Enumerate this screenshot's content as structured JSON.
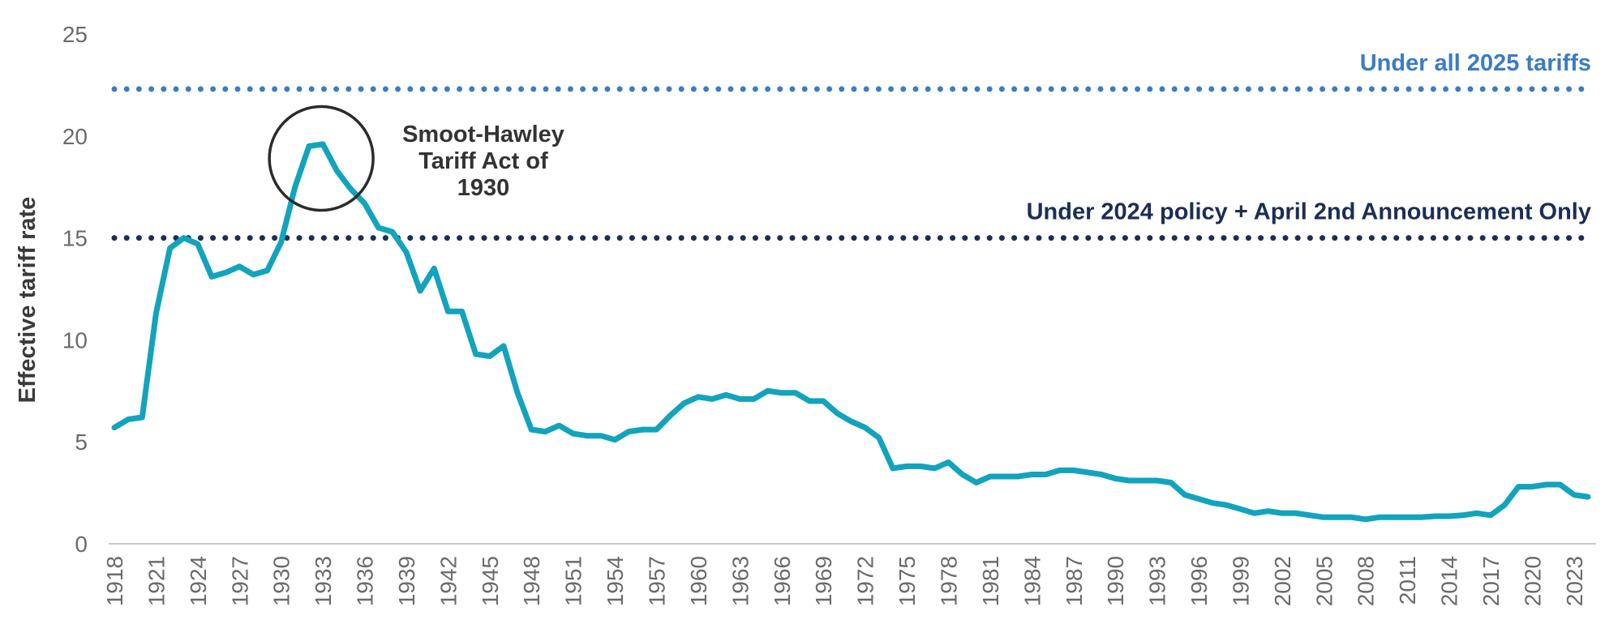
{
  "chart_data": {
    "type": "line",
    "title": "",
    "xlabel": "",
    "ylabel": "Effective tariff rate",
    "ylim": [
      0,
      25
    ],
    "yticks": [
      0,
      5,
      10,
      15,
      20,
      25
    ],
    "xlim": [
      1918,
      2024
    ],
    "xticks": [
      1918,
      1921,
      1924,
      1927,
      1930,
      1933,
      1936,
      1939,
      1942,
      1945,
      1948,
      1951,
      1954,
      1957,
      1960,
      1963,
      1966,
      1969,
      1972,
      1975,
      1978,
      1981,
      1984,
      1987,
      1990,
      1993,
      1996,
      1999,
      2002,
      2005,
      2008,
      2011,
      2014,
      2017,
      2020,
      2023
    ],
    "grid": false,
    "series": [
      {
        "name": "Effective tariff rate",
        "color": "#12a3bd",
        "x": [
          1918,
          1919,
          1920,
          1921,
          1922,
          1923,
          1924,
          1925,
          1926,
          1927,
          1928,
          1929,
          1930,
          1931,
          1932,
          1933,
          1934,
          1935,
          1936,
          1937,
          1938,
          1939,
          1940,
          1941,
          1942,
          1943,
          1944,
          1945,
          1946,
          1947,
          1948,
          1949,
          1950,
          1951,
          1952,
          1953,
          1954,
          1955,
          1956,
          1957,
          1958,
          1959,
          1960,
          1961,
          1962,
          1963,
          1964,
          1965,
          1966,
          1967,
          1968,
          1969,
          1970,
          1971,
          1972,
          1973,
          1974,
          1975,
          1976,
          1977,
          1978,
          1979,
          1980,
          1981,
          1982,
          1983,
          1984,
          1985,
          1986,
          1987,
          1988,
          1989,
          1990,
          1991,
          1992,
          1993,
          1994,
          1995,
          1996,
          1997,
          1998,
          1999,
          2000,
          2001,
          2002,
          2003,
          2004,
          2005,
          2006,
          2007,
          2008,
          2009,
          2010,
          2011,
          2012,
          2013,
          2014,
          2015,
          2016,
          2017,
          2018,
          2019,
          2020,
          2021,
          2022,
          2023,
          2024
        ],
        "values": [
          5.7,
          6.1,
          6.2,
          11.3,
          14.5,
          15.0,
          14.7,
          13.1,
          13.3,
          13.6,
          13.2,
          13.4,
          14.8,
          17.5,
          19.5,
          19.6,
          18.3,
          17.4,
          16.7,
          15.5,
          15.3,
          14.3,
          12.4,
          13.5,
          11.4,
          11.4,
          9.3,
          9.2,
          9.7,
          7.4,
          5.6,
          5.5,
          5.8,
          5.4,
          5.3,
          5.3,
          5.1,
          5.5,
          5.6,
          5.6,
          6.3,
          6.9,
          7.2,
          7.1,
          7.3,
          7.1,
          7.1,
          7.5,
          7.4,
          7.4,
          7.0,
          7.0,
          6.4,
          6.0,
          5.7,
          5.2,
          3.7,
          3.8,
          3.8,
          3.7,
          4.0,
          3.4,
          3.0,
          3.3,
          3.3,
          3.3,
          3.4,
          3.4,
          3.6,
          3.6,
          3.5,
          3.4,
          3.2,
          3.1,
          3.1,
          3.1,
          3.0,
          2.4,
          2.2,
          2.0,
          1.9,
          1.7,
          1.5,
          1.6,
          1.5,
          1.5,
          1.4,
          1.3,
          1.3,
          1.3,
          1.2,
          1.3,
          1.3,
          1.3,
          1.3,
          1.35,
          1.35,
          1.4,
          1.5,
          1.4,
          1.9,
          2.8,
          2.8,
          2.9,
          2.9,
          2.4,
          2.3
        ]
      }
    ],
    "reference_lines": [
      {
        "label": "Under all 2025 tariffs",
        "value": 22.3,
        "color": "#3b7cc4"
      },
      {
        "label": "Under 2024 policy + April 2nd Announcement Only",
        "value": 15.0,
        "color": "#1b2e55"
      }
    ],
    "annotation": {
      "lines": [
        "Smoot-Hawley",
        "Tariff Act of",
        "1930"
      ],
      "year": 1933,
      "value": 18.9
    }
  }
}
